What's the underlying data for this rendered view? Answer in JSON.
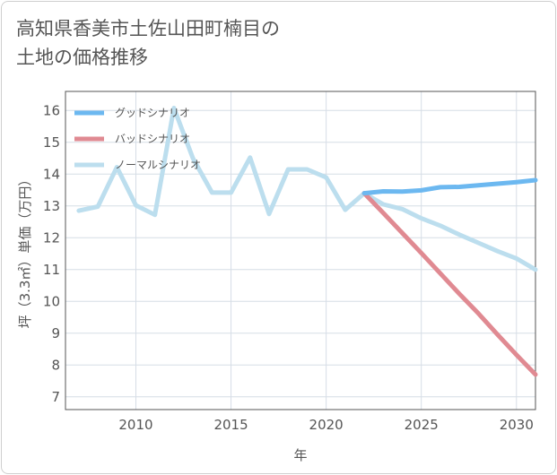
{
  "title_line1": "高知県香美市土佐山田町楠目の",
  "title_line2": "土地の価格推移",
  "chart_data": {
    "type": "line",
    "xlabel": "年",
    "ylabel": "坪（3.3㎡）単価（万円）",
    "xlim": [
      2006.3,
      2031
    ],
    "ylim": [
      6.6,
      16.6
    ],
    "xticks": [
      2010,
      2015,
      2020,
      2025,
      2030
    ],
    "yticks": [
      7,
      8,
      9,
      10,
      11,
      12,
      13,
      14,
      15,
      16
    ],
    "grid": true,
    "legend_position": "top-left",
    "series": [
      {
        "name": "グッドシナリオ",
        "color": "#6cb8f0",
        "x": [
          2022,
          2023,
          2024,
          2025,
          2026,
          2027,
          2028,
          2029,
          2030,
          2031
        ],
        "y": [
          13.4,
          13.46,
          13.45,
          13.49,
          13.59,
          13.6,
          13.65,
          13.7,
          13.75,
          13.81
        ]
      },
      {
        "name": "バッドシナリオ",
        "color": "#e08a92",
        "x": [
          2022,
          2023,
          2024,
          2025,
          2026,
          2027,
          2028,
          2029,
          2030,
          2031
        ],
        "y": [
          13.4,
          12.78,
          12.15,
          11.52,
          10.88,
          10.24,
          9.62,
          8.96,
          8.32,
          7.7
        ]
      },
      {
        "name": "ノーマルシナリオ",
        "color": "#bcdeee",
        "x": [
          2007,
          2008,
          2009,
          2010,
          2011,
          2012,
          2013,
          2014,
          2015,
          2016,
          2017,
          2018,
          2019,
          2020,
          2021,
          2022,
          2023,
          2024,
          2025,
          2026,
          2027,
          2028,
          2029,
          2030,
          2031
        ],
        "y": [
          12.85,
          12.98,
          14.22,
          13.02,
          12.72,
          16.08,
          14.5,
          13.42,
          13.42,
          14.52,
          12.75,
          14.15,
          14.15,
          13.9,
          12.88,
          13.4,
          13.05,
          12.9,
          12.61,
          12.38,
          12.1,
          11.84,
          11.58,
          11.35,
          11.0
        ]
      }
    ]
  }
}
